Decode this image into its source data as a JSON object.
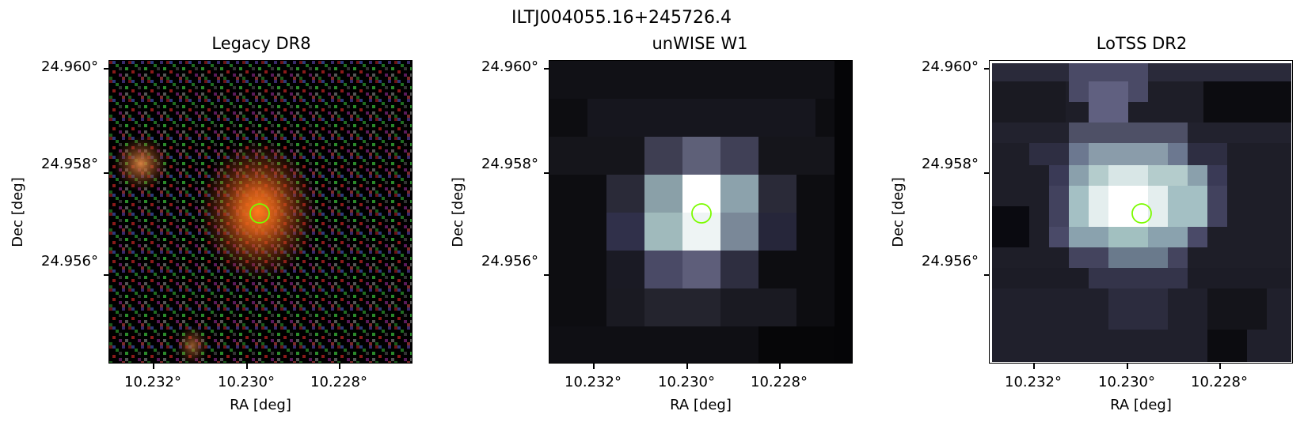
{
  "figure": {
    "title": "ILTJ004055.16+245726.4",
    "marker_color": "#7CFC00"
  },
  "panels": [
    {
      "title": "Legacy DR8",
      "xlabel": "RA [deg]",
      "ylabel": "Dec [deg]",
      "xticks": [
        "10.232°",
        "10.230°",
        "10.228°"
      ],
      "yticks": [
        "24.960°",
        "24.958°",
        "24.956°"
      ]
    },
    {
      "title": "unWISE W1",
      "xlabel": "RA [deg]",
      "ylabel": "Dec [deg]",
      "xticks": [
        "10.232°",
        "10.230°",
        "10.228°"
      ],
      "yticks": [
        "24.960°",
        "24.958°",
        "24.956°"
      ]
    },
    {
      "title": "LoTSS DR2",
      "xlabel": "RA [deg]",
      "ylabel": "Dec [deg]",
      "xticks": [
        "10.232°",
        "10.230°",
        "10.228°"
      ],
      "yticks": [
        "24.960°",
        "24.958°",
        "24.956°"
      ]
    }
  ]
}
